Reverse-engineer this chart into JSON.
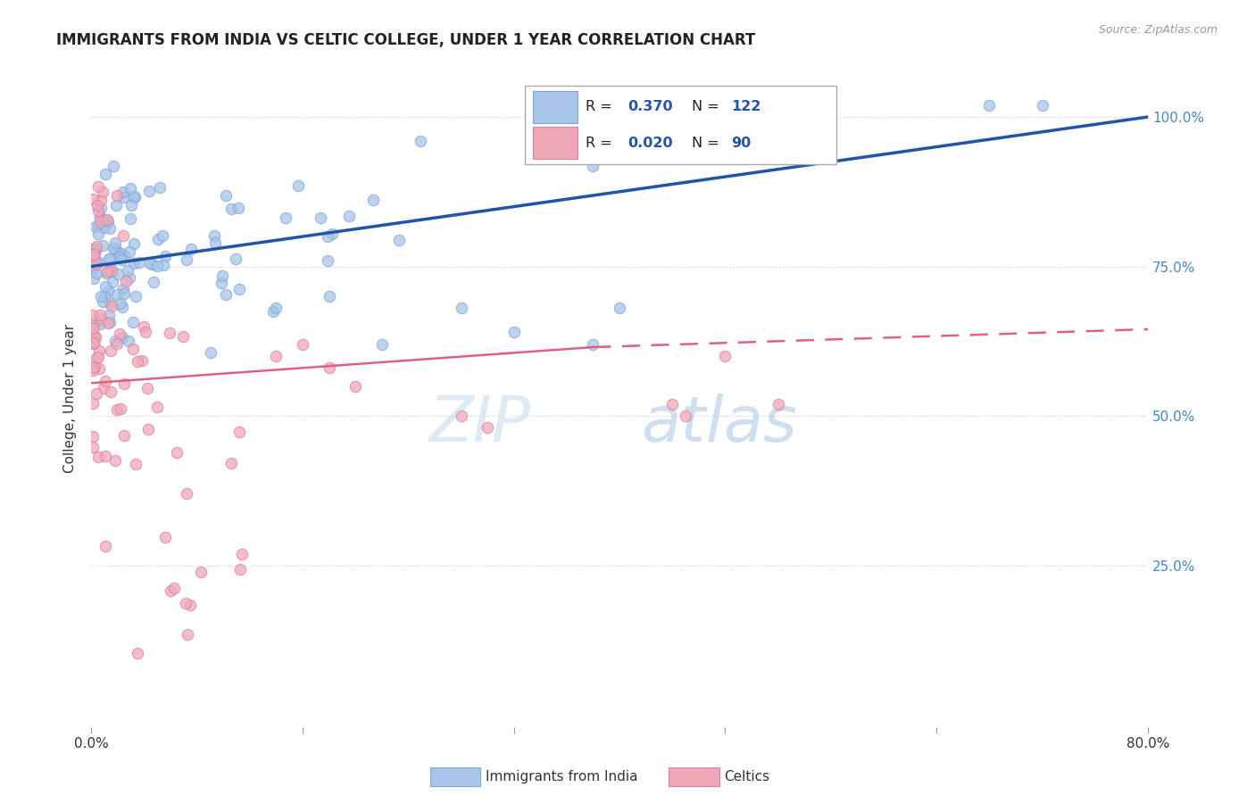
{
  "title": "IMMIGRANTS FROM INDIA VS CELTIC COLLEGE, UNDER 1 YEAR CORRELATION CHART",
  "source": "Source: ZipAtlas.com",
  "ylabel": "College, Under 1 year",
  "legend_items": [
    {
      "label": "Immigrants from India",
      "color": "#a8c4e8",
      "R": "0.370",
      "N": "122"
    },
    {
      "label": "Celtics",
      "color": "#f0a8b8",
      "R": "0.020",
      "N": "90"
    }
  ],
  "background_color": "#ffffff",
  "blue_line": {
    "x0": 0.0,
    "y0": 0.75,
    "x1": 0.8,
    "y1": 1.0
  },
  "pink_line_solid": {
    "x0": 0.0,
    "y0": 0.555,
    "x1": 0.38,
    "y1": 0.615
  },
  "pink_line_dashed": {
    "x0": 0.38,
    "y0": 0.615,
    "x1": 0.8,
    "y1": 0.645
  },
  "xmin": 0.0,
  "xmax": 0.8,
  "ymin": -0.02,
  "ymax": 1.08,
  "ytick_vals": [
    0.25,
    0.5,
    0.75,
    1.0
  ],
  "ytick_labels": [
    "25.0%",
    "50.0%",
    "75.0%",
    "100.0%"
  ],
  "watermark": "ZIPatlas"
}
